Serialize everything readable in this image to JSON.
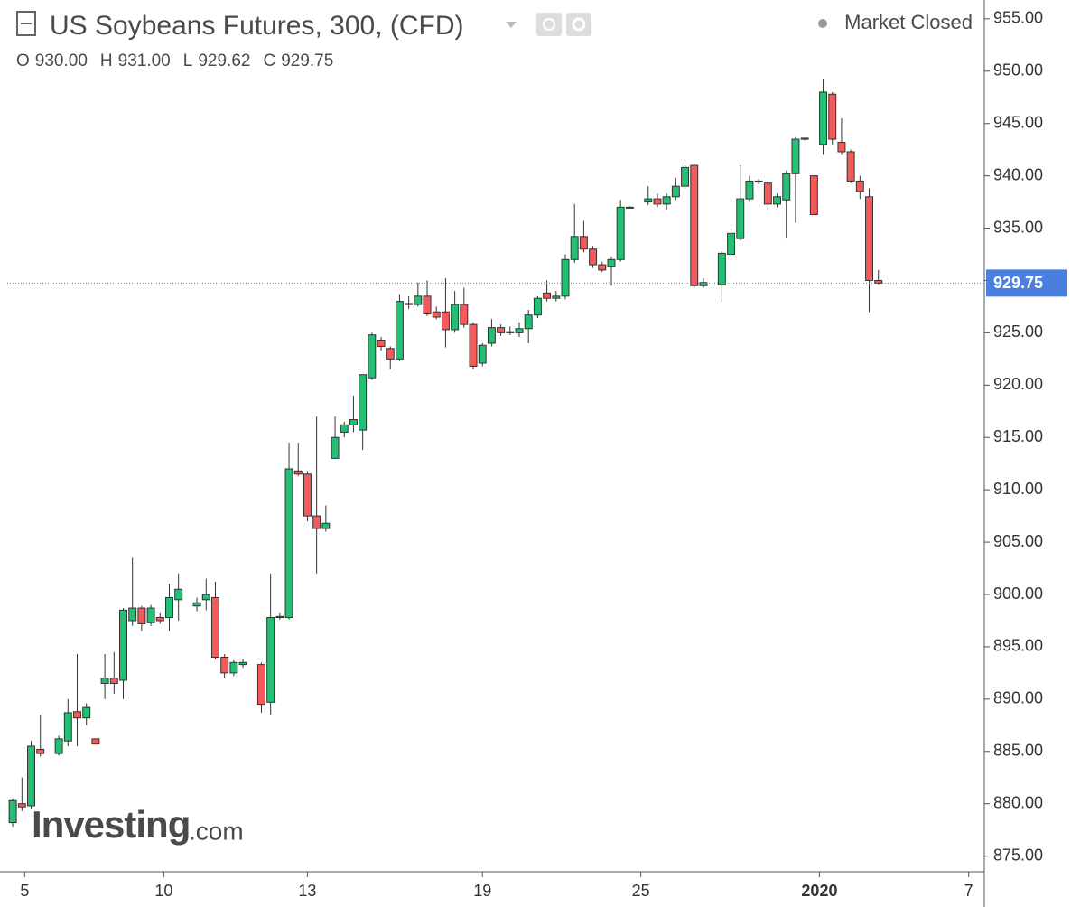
{
  "chart_data": {
    "type": "candlestick",
    "title": "US Soybeans Futures, 300, (CFD)",
    "status": "Market Closed",
    "ohlc_header": [
      {
        "key": "O",
        "value": 930,
        "label": "930.00"
      },
      {
        "key": "H",
        "value": 931,
        "label": "931.00"
      },
      {
        "key": "L",
        "value": 929.62,
        "label": "929.62"
      },
      {
        "key": "C",
        "value": 929.75,
        "label": "929.75"
      }
    ],
    "watermark": [
      "Investing",
      ".com"
    ],
    "last_price": 929.75,
    "up_color": "#22bf75",
    "down_color": "#f55a5a",
    "xlim": [
      -0.6,
      105.5
    ],
    "xticks": [
      {
        "value": 1.3,
        "label": "5"
      },
      {
        "value": 16.4,
        "label": "10"
      },
      {
        "value": 32,
        "label": "13"
      },
      {
        "value": 51,
        "label": "19"
      },
      {
        "value": 68.2,
        "label": "25"
      },
      {
        "value": 87.6,
        "label": "2020"
      },
      {
        "value": 103.8,
        "label": "7"
      }
    ],
    "ylim": [
      873.5,
      956.8
    ],
    "yticks": [
      {
        "value": 875,
        "label": "875.00"
      },
      {
        "value": 880,
        "label": "880.00"
      },
      {
        "value": 885,
        "label": "885.00"
      },
      {
        "value": 890,
        "label": "890.00"
      },
      {
        "value": 895,
        "label": "895.00"
      },
      {
        "value": 900,
        "label": "900.00"
      },
      {
        "value": 905,
        "label": "905.00"
      },
      {
        "value": 910,
        "label": "910.00"
      },
      {
        "value": 915,
        "label": "915.00"
      },
      {
        "value": 920,
        "label": "920.00"
      },
      {
        "value": 925,
        "label": "925.00"
      },
      {
        "value": 930,
        "label": "930.00"
      },
      {
        "value": 935,
        "label": "935.00"
      },
      {
        "value": 940,
        "label": "940.00"
      },
      {
        "value": 945,
        "label": "945.00"
      },
      {
        "value": 950,
        "label": "950.00"
      },
      {
        "value": 955,
        "label": "955.00"
      }
    ],
    "x": [
      0,
      1,
      2,
      3,
      5,
      6,
      7,
      8,
      9,
      10,
      11,
      12,
      13,
      14,
      15,
      16,
      17,
      18,
      20,
      21,
      22,
      23,
      24,
      25,
      27,
      28,
      29,
      30,
      31,
      32,
      33,
      34,
      35,
      36,
      37,
      38,
      39,
      40,
      41,
      42,
      43,
      44,
      45,
      46,
      47,
      48,
      49,
      50,
      51,
      52,
      53,
      54,
      55,
      56,
      57,
      58,
      59,
      60,
      61,
      62,
      63,
      64,
      65,
      66,
      67,
      69,
      70,
      71,
      72,
      73,
      74,
      75,
      77,
      78,
      79,
      80,
      81,
      82,
      83,
      84,
      85,
      86,
      87,
      88,
      89,
      90,
      91,
      92,
      93,
      94
    ],
    "open": [
      878.2,
      880.0,
      879.8,
      885.2,
      884.8,
      886.0,
      888.8,
      888.2,
      886.2,
      891.5,
      892.0,
      891.8,
      897.5,
      898.7,
      897.3,
      897.8,
      897.8,
      899.5,
      898.9,
      899.5,
      899.7,
      894.0,
      892.5,
      893.3,
      893.3,
      889.7,
      897.8,
      897.8,
      911.8,
      911.5,
      907.5,
      906.3,
      913.0,
      915.5,
      916.2,
      915.7,
      920.7,
      924.3,
      923.5,
      922.5,
      927.8,
      927.7,
      928.5,
      927.0,
      927.0,
      925.3,
      927.7,
      925.8,
      922.1,
      924.0,
      925.5,
      925.0,
      925.0,
      925.4,
      926.7,
      928.8,
      928.3,
      928.5,
      932.0,
      934.2,
      933.0,
      931.5,
      931.3,
      932.0,
      937.0,
      937.5,
      937.8,
      937.3,
      938.0,
      939.0,
      941.0,
      929.5,
      929.6,
      932.5,
      934.0,
      937.8,
      939.5,
      939.3,
      937.3,
      937.7,
      940.2,
      943.5,
      940.0,
      943.0,
      947.8,
      943.2,
      942.3,
      939.5,
      938.0,
      930.0
    ],
    "high": [
      880.5,
      882.5,
      886.0,
      888.5,
      886.5,
      890.0,
      894.3,
      889.6,
      886.2,
      894.3,
      894.5,
      898.7,
      903.5,
      898.9,
      899.0,
      898.2,
      901.0,
      902.0,
      899.7,
      901.5,
      901.2,
      894.3,
      893.7,
      893.8,
      893.5,
      902.0,
      898.2,
      914.5,
      914.5,
      911.8,
      917.0,
      908.5,
      917.0,
      916.5,
      919.0,
      921.0,
      925.0,
      924.6,
      923.7,
      928.7,
      928.5,
      929.8,
      930.0,
      927.5,
      930.2,
      929.0,
      929.3,
      926.0,
      924.0,
      926.3,
      925.8,
      925.6,
      926.0,
      927.2,
      928.5,
      930.0,
      929.0,
      932.5,
      937.3,
      935.7,
      933.3,
      931.8,
      932.3,
      937.7,
      937.1,
      939.0,
      938.3,
      938.3,
      939.8,
      941.0,
      941.2,
      930.2,
      932.8,
      935.0,
      941.0,
      940.0,
      939.7,
      939.5,
      938.3,
      940.5,
      943.7,
      943.6,
      940.0,
      949.2,
      948.0,
      945.5,
      942.5,
      940.0,
      938.8,
      931.0
    ],
    "low": [
      877.8,
      879.3,
      879.5,
      884.5,
      884.6,
      885.5,
      885.5,
      887.5,
      885.7,
      890.0,
      890.5,
      890.0,
      897.0,
      896.5,
      897.0,
      897.2,
      896.5,
      897.5,
      898.4,
      898.5,
      893.8,
      892.0,
      892.2,
      893.0,
      888.7,
      888.5,
      897.6,
      897.6,
      911.3,
      907.0,
      902.0,
      906.0,
      913.0,
      915.0,
      915.5,
      913.8,
      920.5,
      923.3,
      921.5,
      922.3,
      927.3,
      927.5,
      926.6,
      926.3,
      923.6,
      925.0,
      925.5,
      921.5,
      921.8,
      923.7,
      924.7,
      924.8,
      924.6,
      924.0,
      926.4,
      928.0,
      928.0,
      928.2,
      931.7,
      932.7,
      931.2,
      930.8,
      929.5,
      931.8,
      936.9,
      937.2,
      937.0,
      936.8,
      937.7,
      938.8,
      929.3,
      929.3,
      928.0,
      932.2,
      933.8,
      937.5,
      939.2,
      936.8,
      937.0,
      934.0,
      935.5,
      943.4,
      936.3,
      942.0,
      943.0,
      942.0,
      939.3,
      937.8,
      927.0,
      929.62
    ],
    "close": [
      880.3,
      879.7,
      885.5,
      884.8,
      886.2,
      888.7,
      888.2,
      889.2,
      885.7,
      892.0,
      891.5,
      898.5,
      898.7,
      897.2,
      898.7,
      897.5,
      899.7,
      900.5,
      899.2,
      900.0,
      894.0,
      892.5,
      893.5,
      893.5,
      889.5,
      897.8,
      897.9,
      912.0,
      911.5,
      907.5,
      906.3,
      906.8,
      915.0,
      916.2,
      916.7,
      921.0,
      924.8,
      923.7,
      922.5,
      928.0,
      927.7,
      928.5,
      926.8,
      926.5,
      925.3,
      927.7,
      925.8,
      921.8,
      923.8,
      925.5,
      925.0,
      925.1,
      925.4,
      926.7,
      928.3,
      928.3,
      928.5,
      932.0,
      934.2,
      933.0,
      931.5,
      931.0,
      932.0,
      937.0,
      937.0,
      937.8,
      937.3,
      938.0,
      939.0,
      940.8,
      929.5,
      929.8,
      932.6,
      934.5,
      937.8,
      939.5,
      939.4,
      937.3,
      938.0,
      940.2,
      943.5,
      943.6,
      936.3,
      948.0,
      943.5,
      942.3,
      939.5,
      938.5,
      930.0,
      929.75
    ]
  }
}
